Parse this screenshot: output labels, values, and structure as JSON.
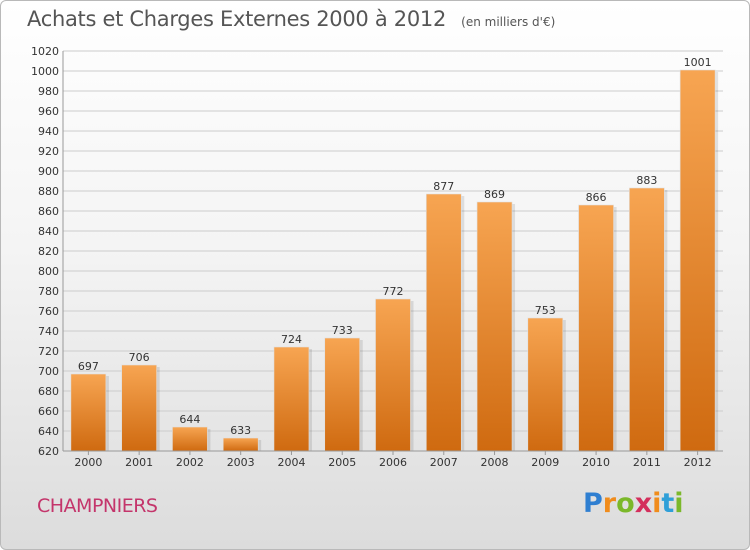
{
  "title": "Achats et Charges Externes 2000 à 2012",
  "subtitle": "(en milliers d'€)",
  "commune": "CHAMPNIERS",
  "logo": {
    "letters": [
      "P",
      "r",
      "o",
      "x",
      "i",
      "t",
      "i"
    ],
    "colors": [
      "#2f7fd1",
      "#f08c1c",
      "#7bb82a",
      "#d42f5c",
      "#f08c1c",
      "#2f9fd8",
      "#7bb82a"
    ]
  },
  "colors": {
    "bar_top": "#f7a552",
    "bar_bottom": "#cf6a10",
    "grid": "#cccccc",
    "axis_text": "#333333"
  },
  "chart_data": {
    "type": "bar",
    "title": "Achats et Charges Externes 2000 à 2012",
    "subtitle": "(en milliers d'€)",
    "categories": [
      "2000",
      "2001",
      "2002",
      "2003",
      "2004",
      "2005",
      "2006",
      "2007",
      "2008",
      "2009",
      "2010",
      "2011",
      "2012"
    ],
    "values": [
      697,
      706,
      644,
      633,
      724,
      733,
      772,
      877,
      869,
      753,
      866,
      883,
      1001
    ],
    "ylim": [
      620,
      1020
    ],
    "yticks": [
      620,
      640,
      660,
      680,
      700,
      720,
      740,
      760,
      780,
      800,
      820,
      840,
      860,
      880,
      900,
      920,
      940,
      960,
      980,
      1000,
      1020
    ],
    "grid": true,
    "data_labels": true
  }
}
